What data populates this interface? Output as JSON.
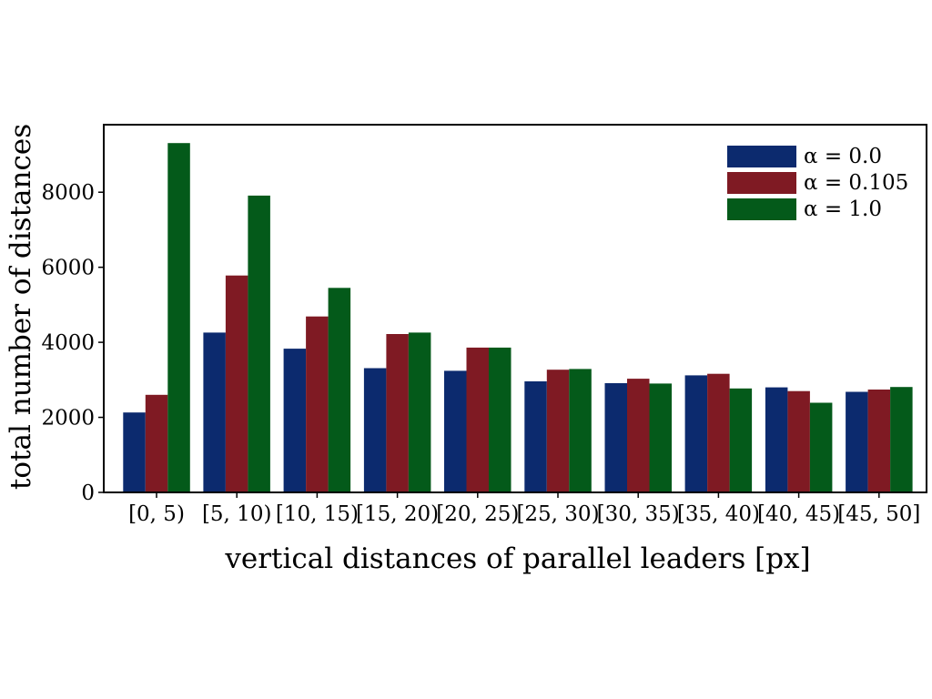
{
  "chart_data": {
    "type": "bar",
    "categories": [
      "[0, 5)",
      "[5, 10)",
      "[10, 15)",
      "[15, 20)",
      "[20, 25)",
      "[25, 30)",
      "[30, 35)",
      "[35, 40)",
      "[40, 45)",
      "[45, 50]"
    ],
    "series": [
      {
        "name": "α = 0.0",
        "color": "#0c2a6e",
        "values": [
          2130,
          4260,
          3830,
          3310,
          3240,
          2960,
          2910,
          3120,
          2800,
          2680
        ]
      },
      {
        "name": "α = 0.105",
        "color": "#7f1a23",
        "values": [
          2600,
          5780,
          4690,
          4220,
          3860,
          3270,
          3030,
          3160,
          2700,
          2740
        ]
      },
      {
        "name": "α = 1.0",
        "color": "#045a1a",
        "values": [
          9310,
          7910,
          5450,
          4260,
          3860,
          3290,
          2900,
          2770,
          2390,
          2810
        ]
      }
    ],
    "xlabel": "vertical distances of parallel leaders [px]",
    "ylabel": "total number of distances",
    "ylim": [
      0,
      9800
    ],
    "yticks": [
      "0",
      "2000",
      "4000",
      "6000",
      "8000"
    ],
    "grid": false,
    "legend_position": "top-right"
  }
}
